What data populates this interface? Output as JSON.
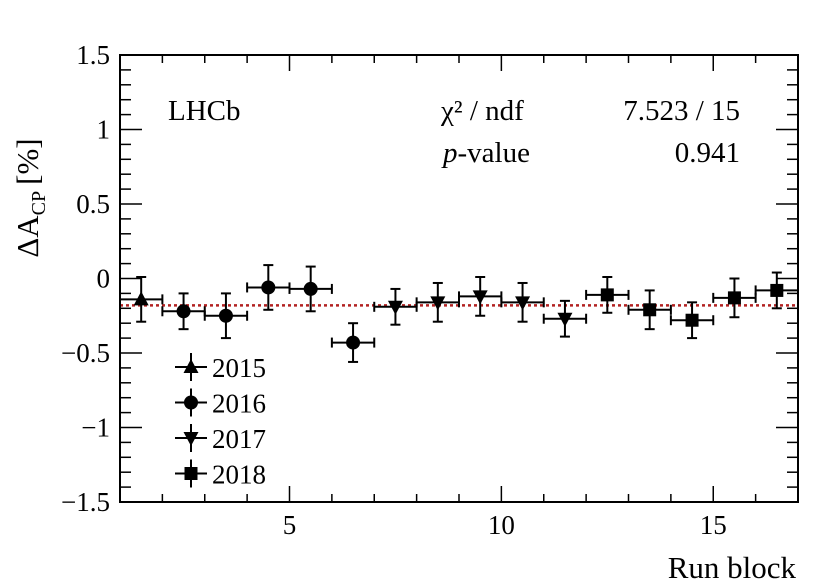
{
  "chart_data": {
    "type": "scatter",
    "xlabel": "Run block",
    "ylabel_main": "ΔA",
    "ylabel_sub": "CP",
    "ylabel_unit": "[%]",
    "xlim": [
      1,
      17
    ],
    "ylim": [
      -1.5,
      1.5
    ],
    "xticks": [
      5,
      10,
      15
    ],
    "yticks": [
      {
        "v": 1.5,
        "label": "1.5"
      },
      {
        "v": 1,
        "label": "1"
      },
      {
        "v": 0.5,
        "label": "0.5"
      },
      {
        "v": 0,
        "label": "0"
      },
      {
        "v": -0.5,
        "label": "−0.5"
      },
      {
        "v": -1,
        "label": "−1"
      },
      {
        "v": -1.5,
        "label": "−1.5"
      }
    ],
    "experiment_label": "LHCb",
    "stats": {
      "chi2_label": "χ² / ndf",
      "chi2_value": "7.523 / 15",
      "pvalue_label_italic": "p",
      "pvalue_label_rest": "-value",
      "pvalue_value": "0.941"
    },
    "fit_line": {
      "value": -0.18,
      "color": "#b22222"
    },
    "series": [
      {
        "name": "2015",
        "marker": "triangle-up",
        "points": [
          {
            "x": 1.5,
            "y": -0.14,
            "err": 0.15
          }
        ]
      },
      {
        "name": "2016",
        "marker": "circle",
        "points": [
          {
            "x": 2.5,
            "y": -0.22,
            "err": 0.12
          },
          {
            "x": 3.5,
            "y": -0.25,
            "err": 0.15
          },
          {
            "x": 4.5,
            "y": -0.06,
            "err": 0.15
          },
          {
            "x": 5.5,
            "y": -0.07,
            "err": 0.15
          },
          {
            "x": 6.5,
            "y": -0.43,
            "err": 0.13
          }
        ]
      },
      {
        "name": "2017",
        "marker": "triangle-down",
        "points": [
          {
            "x": 7.5,
            "y": -0.19,
            "err": 0.12
          },
          {
            "x": 8.5,
            "y": -0.16,
            "err": 0.13
          },
          {
            "x": 9.5,
            "y": -0.12,
            "err": 0.13
          },
          {
            "x": 10.5,
            "y": -0.16,
            "err": 0.13
          },
          {
            "x": 11.5,
            "y": -0.27,
            "err": 0.12
          }
        ]
      },
      {
        "name": "2018",
        "marker": "square",
        "points": [
          {
            "x": 12.5,
            "y": -0.11,
            "err": 0.12
          },
          {
            "x": 13.5,
            "y": -0.21,
            "err": 0.13
          },
          {
            "x": 14.5,
            "y": -0.28,
            "err": 0.12
          },
          {
            "x": 15.5,
            "y": -0.13,
            "err": 0.13
          },
          {
            "x": 16.5,
            "y": -0.08,
            "err": 0.12
          }
        ]
      }
    ],
    "legend_position": "bottom-left"
  }
}
